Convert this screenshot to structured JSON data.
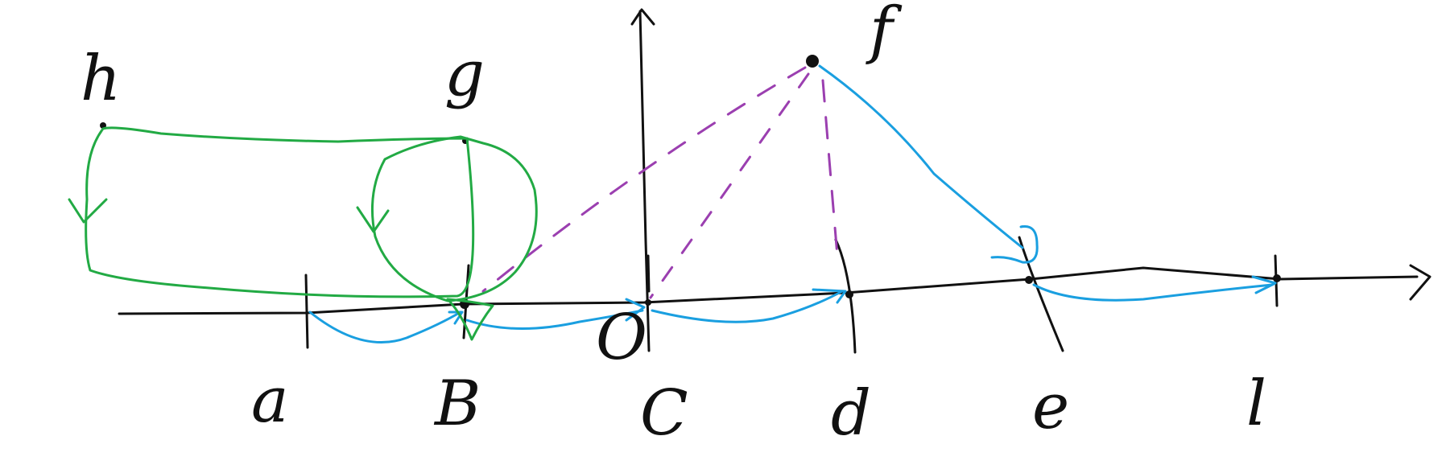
{
  "diagram": {
    "axis_labels": [
      "a",
      "B",
      "C",
      "d",
      "e",
      "l"
    ],
    "origin_label": "O",
    "point_labels": [
      "h",
      "g",
      "f"
    ]
  },
  "colors": {
    "ink": "#111111",
    "loop_arrows": "#22aa44",
    "path_arrows": "#1a9fe0",
    "dashed_lines": "#9b3fb0",
    "background": "#ffffff"
  }
}
